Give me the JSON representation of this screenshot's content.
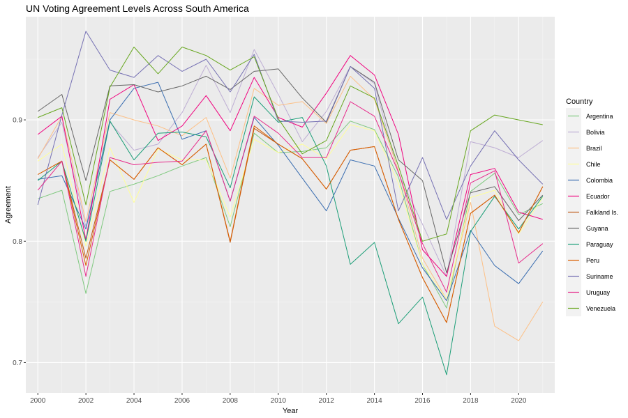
{
  "chart_data": {
    "type": "line",
    "title": "UN Voting Agreement Levels Across South America",
    "xlabel": "Year",
    "ylabel": "Agreement",
    "xlim": [
      1999.5,
      2021.5
    ],
    "ylim": [
      0.675,
      0.985
    ],
    "x_ticks": [
      2000,
      2002,
      2004,
      2006,
      2008,
      2010,
      2012,
      2014,
      2016,
      2018,
      2020
    ],
    "y_ticks": [
      0.7,
      0.8,
      0.9
    ],
    "y_tick_labels": [
      "0.7",
      "0.8",
      "0.9"
    ],
    "grid": true,
    "legend_title": "Country",
    "legend_position": "right",
    "x": [
      2000,
      2001,
      2002,
      2003,
      2004,
      2005,
      2006,
      2007,
      2008,
      2009,
      2010,
      2011,
      2012,
      2013,
      2014,
      2015,
      2016,
      2017,
      2018,
      2019,
      2020,
      2021
    ],
    "series": [
      {
        "name": "Argentina",
        "color": "#7fc97f",
        "values": [
          0.835,
          0.842,
          0.757,
          0.841,
          0.847,
          0.854,
          0.862,
          0.869,
          0.812,
          0.889,
          0.873,
          0.874,
          0.877,
          0.899,
          0.892,
          0.853,
          0.781,
          0.745,
          0.841,
          0.856,
          0.822,
          0.831
        ]
      },
      {
        "name": "Bolivia",
        "color": "#beaed4",
        "values": [
          0.869,
          0.898,
          0.812,
          0.898,
          0.875,
          0.88,
          0.906,
          0.945,
          0.906,
          0.958,
          0.921,
          0.882,
          0.907,
          0.944,
          0.93,
          0.856,
          0.814,
          0.771,
          0.882,
          0.877,
          0.869,
          0.883
        ]
      },
      {
        "name": "Brazil",
        "color": "#fdc086",
        "values": [
          0.868,
          0.903,
          0.816,
          0.906,
          0.9,
          0.895,
          0.887,
          0.902,
          0.852,
          0.926,
          0.912,
          0.915,
          0.897,
          0.936,
          0.917,
          0.858,
          0.786,
          0.752,
          0.832,
          0.73,
          0.718,
          0.75
        ]
      },
      {
        "name": "Chile",
        "color": "#ffff99",
        "values": [
          0.866,
          0.88,
          0.796,
          0.877,
          0.832,
          0.876,
          0.867,
          0.867,
          0.82,
          0.884,
          0.873,
          0.88,
          0.868,
          0.896,
          0.891,
          0.848,
          0.781,
          0.752,
          0.836,
          0.842,
          0.806,
          0.836
        ]
      },
      {
        "name": "Colombia",
        "color": "#386cb0",
        "values": [
          0.851,
          0.854,
          0.81,
          0.9,
          0.926,
          0.931,
          0.884,
          0.891,
          0.833,
          0.902,
          0.879,
          0.852,
          0.825,
          0.867,
          0.862,
          0.819,
          0.778,
          0.751,
          0.809,
          0.78,
          0.765,
          0.792
        ]
      },
      {
        "name": "Ecuador",
        "color": "#f0027f",
        "values": [
          0.888,
          0.903,
          0.801,
          0.917,
          0.929,
          0.883,
          0.895,
          0.92,
          0.891,
          0.935,
          0.902,
          0.894,
          0.922,
          0.953,
          0.937,
          0.888,
          0.793,
          0.771,
          0.855,
          0.86,
          0.824,
          0.818
        ]
      },
      {
        "name": "Falkland Is.",
        "color": "#bf5b17",
        "values": [
          0.855,
          0.866,
          0.786,
          0.867,
          0.851,
          0.877,
          0.863,
          0.88,
          0.799,
          0.893,
          0.88,
          0.868,
          0.843,
          0.875,
          0.878,
          0.818,
          0.77,
          0.733,
          0.823,
          0.838,
          0.807,
          0.845
        ]
      },
      {
        "name": "Guyana",
        "color": "#666666",
        "values": [
          0.907,
          0.921,
          0.85,
          0.928,
          0.929,
          0.923,
          0.928,
          0.936,
          0.925,
          0.94,
          0.942,
          0.918,
          0.898,
          0.944,
          0.931,
          0.867,
          0.85,
          0.774,
          0.84,
          0.845,
          0.817,
          0.838
        ]
      },
      {
        "name": "Paraguay",
        "color": "#1b9e77",
        "values": [
          0.85,
          0.866,
          0.8,
          0.899,
          0.867,
          0.889,
          0.89,
          0.886,
          0.844,
          0.919,
          0.898,
          0.902,
          0.862,
          0.781,
          0.799,
          0.732,
          0.754,
          0.69,
          0.808,
          0.837,
          0.81,
          0.837
        ]
      },
      {
        "name": "Peru",
        "color": "#d95f02",
        "values": [
          0.855,
          0.866,
          0.78,
          0.867,
          0.851,
          0.877,
          0.863,
          0.88,
          0.8,
          0.895,
          0.88,
          0.868,
          0.843,
          0.875,
          0.878,
          0.818,
          0.77,
          0.733,
          0.823,
          0.838,
          0.807,
          0.845
        ]
      },
      {
        "name": "Suriname",
        "color": "#7570b3",
        "values": [
          0.83,
          0.904,
          0.973,
          0.941,
          0.935,
          0.953,
          0.94,
          0.95,
          0.923,
          0.954,
          0.899,
          0.898,
          0.899,
          0.944,
          0.926,
          0.825,
          0.869,
          0.818,
          0.862,
          0.891,
          0.867,
          0.847
        ]
      },
      {
        "name": "Uruguay",
        "color": "#e7298a",
        "values": [
          0.842,
          0.866,
          0.771,
          0.869,
          0.863,
          0.865,
          0.866,
          0.891,
          0.833,
          0.903,
          0.889,
          0.869,
          0.869,
          0.915,
          0.903,
          0.857,
          0.798,
          0.758,
          0.848,
          0.858,
          0.782,
          0.798
        ]
      },
      {
        "name": "Venezuela",
        "color": "#66a61e",
        "values": [
          0.902,
          0.91,
          0.83,
          0.927,
          0.96,
          0.938,
          0.96,
          0.953,
          0.941,
          0.952,
          0.901,
          0.872,
          0.883,
          0.928,
          0.918,
          0.862,
          0.8,
          0.806,
          0.891,
          0.904,
          0.9,
          0.896
        ]
      }
    ]
  }
}
